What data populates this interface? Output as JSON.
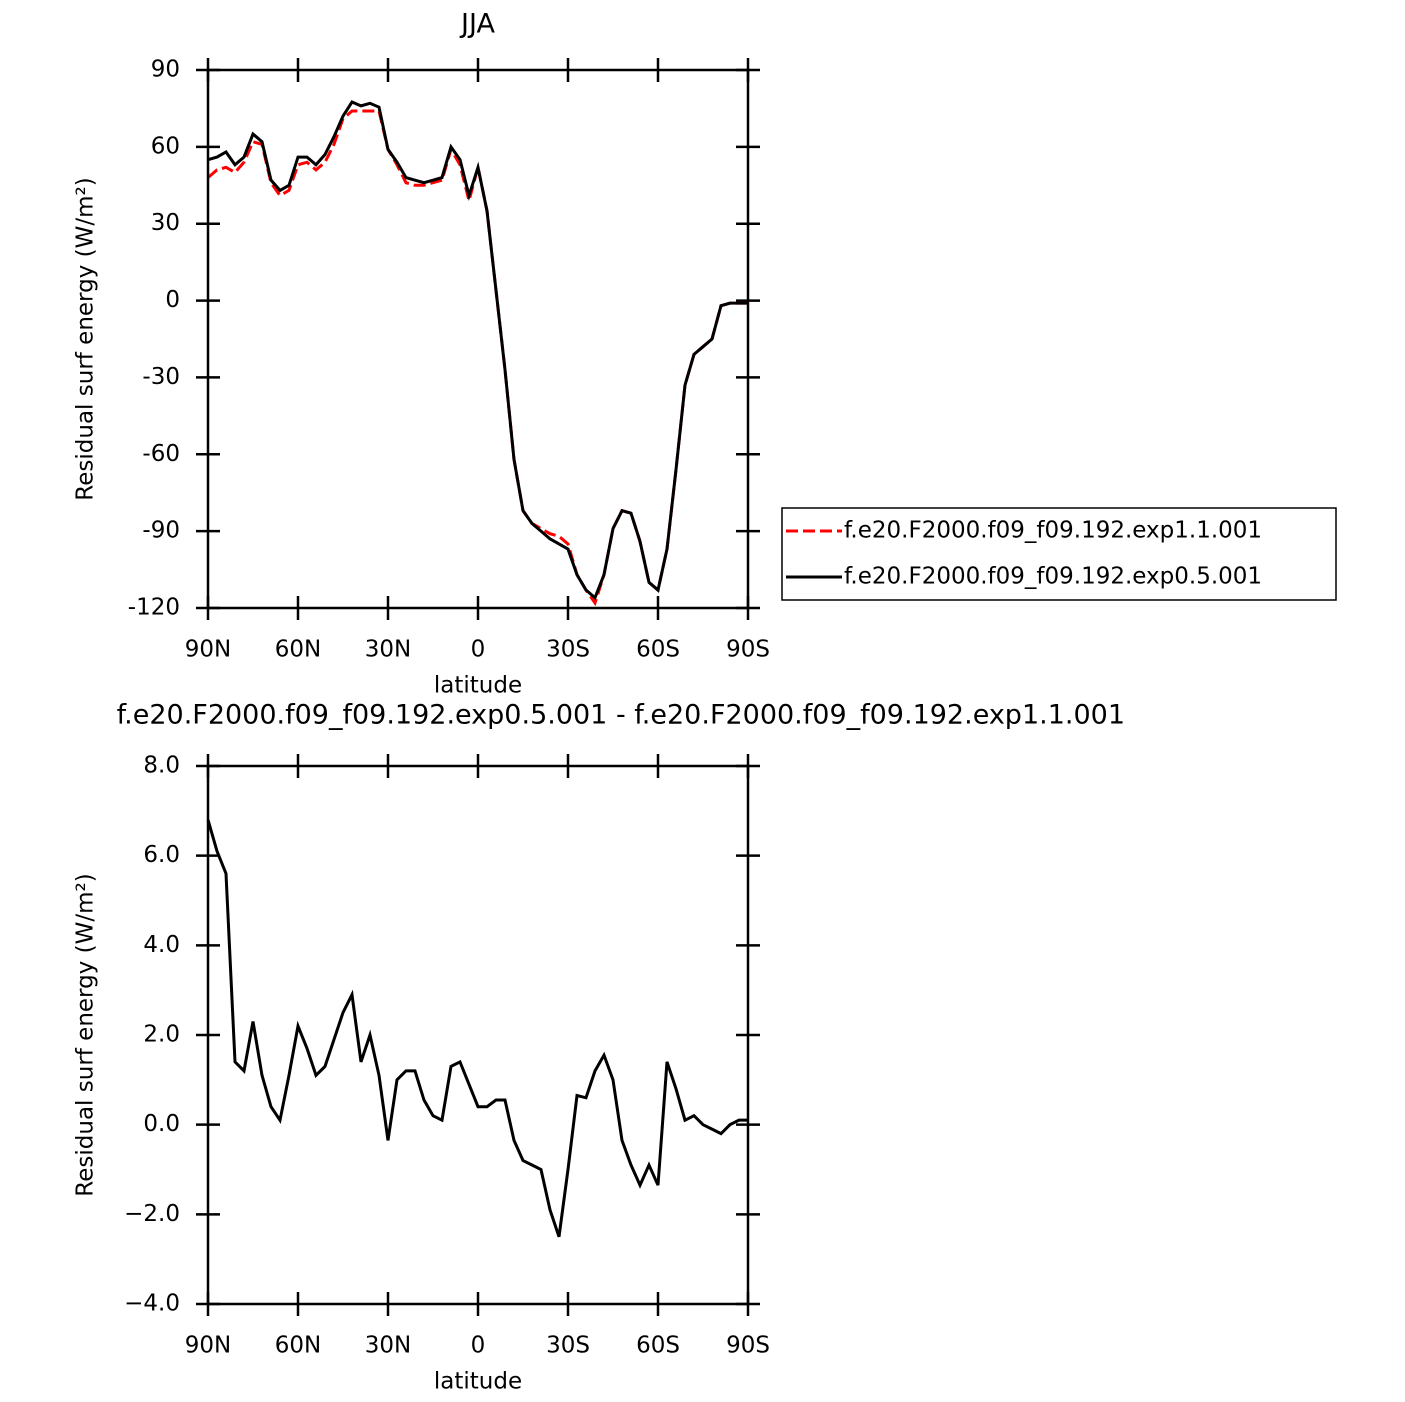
{
  "chart_data": [
    {
      "type": "line",
      "title": "JJA",
      "xlabel": "latitude",
      "ylabel": "Residual surf energy (W/m²)",
      "xlim": [
        90,
        -90
      ],
      "ylim": [
        -120,
        90
      ],
      "xticks": [
        {
          "value": 90,
          "label": "90N"
        },
        {
          "value": 60,
          "label": "60N"
        },
        {
          "value": 30,
          "label": "30N"
        },
        0,
        {
          "value": -30,
          "label": "30S"
        },
        {
          "value": -60,
          "label": "60S"
        },
        {
          "value": -90,
          "label": "90S"
        }
      ],
      "yticks": [
        -120,
        -90,
        -60,
        -30,
        0,
        30,
        60,
        90
      ],
      "legend": "right",
      "x": [
        90,
        87,
        84,
        81,
        78,
        75,
        72,
        69,
        66,
        63,
        60,
        57,
        54,
        51,
        48,
        45,
        42,
        39,
        36,
        33,
        30,
        27,
        24,
        21,
        18,
        15,
        12,
        9,
        6,
        3,
        0,
        -3,
        -6,
        -9,
        -12,
        -15,
        -18,
        -21,
        -24,
        -27,
        -30,
        -33,
        -36,
        -39,
        -42,
        -45,
        -48,
        -51,
        -54,
        -57,
        -60,
        -63,
        -66,
        -69,
        -72,
        -75,
        -78,
        -81,
        -84,
        -87,
        -90
      ],
      "series": [
        {
          "name": "f.e20.F2000.f09_f09.192.exp1.1.001",
          "color": "#ff0000",
          "dash": true,
          "values": [
            48,
            51,
            52,
            50,
            54,
            62,
            61,
            46,
            41,
            43,
            53,
            54,
            51,
            54,
            61,
            71,
            74,
            74,
            74,
            74,
            59,
            53,
            46,
            45,
            45,
            46,
            47,
            59,
            53,
            39,
            52,
            35,
            4,
            -27,
            -62,
            -82,
            -87,
            -89,
            -91,
            -92,
            -95,
            -107,
            -113,
            -118,
            -107,
            -89,
            -82,
            -83,
            -94,
            -110,
            -113,
            -97,
            -66,
            -33,
            -21,
            -18,
            -15,
            -2,
            -1,
            -1,
            -1
          ]
        },
        {
          "name": "f.e20.F2000.f09_f09.192.exp0.5.001",
          "color": "#000000",
          "dash": false,
          "values": [
            55,
            56,
            58,
            53,
            56,
            65,
            62,
            47,
            43,
            45,
            56,
            56,
            53,
            57,
            64,
            72,
            77.5,
            76,
            77,
            75.5,
            59,
            54,
            48,
            47,
            46,
            47,
            48,
            60,
            55,
            41,
            52,
            35,
            4,
            -27,
            -62,
            -82,
            -87,
            -90,
            -93,
            -95,
            -97,
            -107,
            -113,
            -116,
            -107,
            -89,
            -82,
            -83,
            -94,
            -110,
            -113,
            -97,
            -66,
            -33,
            -21,
            -18,
            -15,
            -2,
            -1,
            -1,
            -1
          ]
        }
      ]
    },
    {
      "type": "line",
      "title": "f.e20.F2000.f09_f09.192.exp0.5.001 - f.e20.F2000.f09_f09.192.exp1.1.001",
      "xlabel": "latitude",
      "ylabel": "Residual surf energy (W/m²)",
      "xlim": [
        90,
        -90
      ],
      "ylim": [
        -4,
        8
      ],
      "xticks": [
        {
          "value": 90,
          "label": "90N"
        },
        {
          "value": 60,
          "label": "60N"
        },
        {
          "value": 30,
          "label": "30N"
        },
        0,
        {
          "value": -30,
          "label": "30S"
        },
        {
          "value": -60,
          "label": "60S"
        },
        {
          "value": -90,
          "label": "90S"
        }
      ],
      "yticks": [
        {
          "value": -4,
          "label": "−4.0"
        },
        {
          "value": -2,
          "label": "−2.0"
        },
        {
          "value": 0,
          "label": "0.0"
        },
        {
          "value": 2,
          "label": "2.0"
        },
        {
          "value": 4,
          "label": "4.0"
        },
        {
          "value": 6,
          "label": "6.0"
        },
        {
          "value": 8,
          "label": "8.0"
        }
      ],
      "x": [
        90,
        87,
        84,
        81,
        78,
        75,
        72,
        69,
        66,
        63,
        60,
        57,
        54,
        51,
        48,
        45,
        42,
        39,
        36,
        33,
        30,
        27,
        24,
        21,
        18,
        15,
        12,
        9,
        6,
        3,
        0,
        -3,
        -6,
        -9,
        -12,
        -15,
        -18,
        -21,
        -24,
        -27,
        -30,
        -33,
        -36,
        -39,
        -42,
        -45,
        -48,
        -51,
        -54,
        -57,
        -60,
        -63,
        -66,
        -69,
        -72,
        -75,
        -78,
        -81,
        -84,
        -87,
        -90
      ],
      "series": [
        {
          "color": "#000000",
          "dash": false,
          "values": [
            6.8,
            6.1,
            5.6,
            1.4,
            1.2,
            2.3,
            1.1,
            0.4,
            0.1,
            1.1,
            2.2,
            1.7,
            1.1,
            1.3,
            1.9,
            2.5,
            2.9,
            1.4,
            2.0,
            1.1,
            -0.35,
            1.0,
            1.2,
            1.2,
            0.55,
            0.2,
            0.1,
            1.3,
            1.4,
            0.9,
            0.4,
            0.4,
            0.55,
            0.55,
            -0.35,
            -0.8,
            -0.9,
            -1.0,
            -1.9,
            -2.5,
            -1.0,
            0.65,
            0.6,
            1.2,
            1.55,
            1.0,
            -0.35,
            -0.9,
            -1.35,
            -0.9,
            -1.35,
            1.4,
            0.8,
            0.1,
            0.2,
            0.0,
            -0.1,
            -0.2,
            0.0,
            0.1,
            0.1
          ]
        }
      ]
    }
  ]
}
